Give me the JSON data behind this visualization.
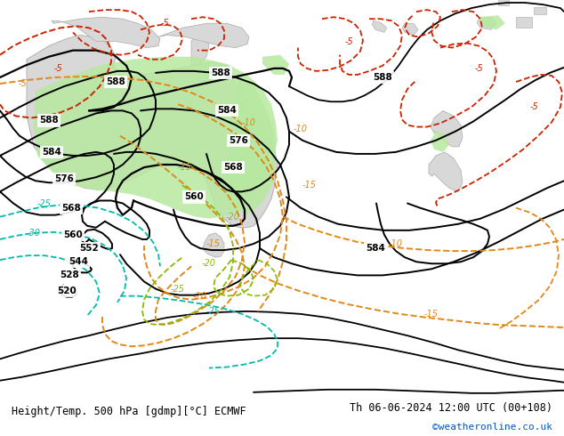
{
  "title_left": "Height/Temp. 500 hPa [gdmp][°C] ECMWF",
  "title_right": "Th 06-06-2024 12:00 UTC (00+108)",
  "credit": "©weatheronline.co.uk",
  "bg_ocean": "#c8d8e8",
  "land_color": "#d8d8d8",
  "green_fill": "#b8e8a0",
  "text_black": "#000000",
  "text_blue": "#0055cc",
  "col_black": "#000000",
  "col_orange": "#e08818",
  "col_red": "#cc2200",
  "col_cyan": "#00bbaa",
  "col_green": "#88cc44",
  "footer_bg": "#ffffff"
}
